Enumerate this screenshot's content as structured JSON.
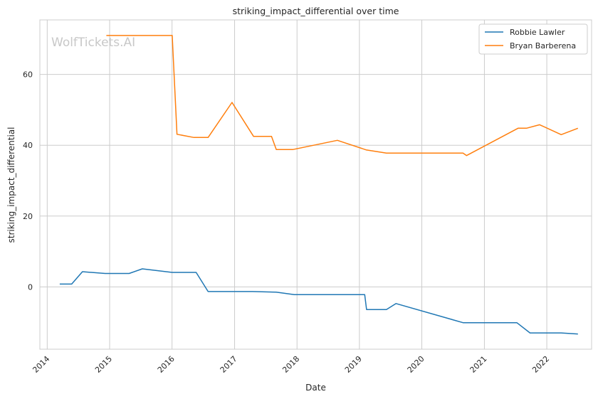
{
  "chart_data": {
    "type": "line",
    "title": "striking_impact_differential over time",
    "xlabel": "Date",
    "ylabel": "striking_impact_differential",
    "watermark": "WolfTickets.AI",
    "xlim": [
      "2013-11-19",
      "2022-09-20"
    ],
    "ylim": [
      -17.6,
      75.4
    ],
    "x_ticks": [
      "2014",
      "2015",
      "2016",
      "2017",
      "2018",
      "2019",
      "2020",
      "2021",
      "2022"
    ],
    "y_ticks": [
      0,
      20,
      40,
      60
    ],
    "grid": true,
    "legend_position": "top-right",
    "series": [
      {
        "name": "Robbie Lawler",
        "color": "#1f77b4",
        "x": [
          "2014-03-15",
          "2014-05-24",
          "2014-07-26",
          "2014-12-06",
          "2015-04-25",
          "2015-07-11",
          "2016-01-02",
          "2016-05-21",
          "2016-07-30",
          "2017-04-15",
          "2017-09-01",
          "2017-12-16",
          "2018-08-04",
          "2019-02-01",
          "2019-02-12",
          "2019-06-08",
          "2019-08-03",
          "2020-08-29",
          "2020-09-12",
          "2021-07-10",
          "2021-09-25",
          "2022-03-26",
          "2022-07-02"
        ],
        "values": [
          0.8,
          0.8,
          4.3,
          3.8,
          3.8,
          5.1,
          4.1,
          4.1,
          -1.3,
          -1.3,
          -1.5,
          -2.2,
          -2.2,
          -2.2,
          -6.4,
          -6.4,
          -4.7,
          -10.1,
          -10.1,
          -10.1,
          -13.0,
          -13.0,
          -13.3
        ]
      },
      {
        "name": "Bryan Barberena",
        "color": "#ff7f0e",
        "x": [
          "2014-12-13",
          "2015-04-04",
          "2016-01-02",
          "2016-01-30",
          "2016-05-08",
          "2016-07-30",
          "2016-12-17",
          "2017-04-22",
          "2017-08-05",
          "2017-09-02",
          "2017-12-09",
          "2018-08-25",
          "2019-02-09",
          "2019-06-08",
          "2020-08-29",
          "2020-09-19",
          "2021-07-17",
          "2021-09-04",
          "2021-11-20",
          "2022-03-26",
          "2022-07-02"
        ],
        "values": [
          71.0,
          71.0,
          71.0,
          43.1,
          42.2,
          42.2,
          52.1,
          42.5,
          42.5,
          38.8,
          38.8,
          41.4,
          38.7,
          37.8,
          37.8,
          37.1,
          44.8,
          44.8,
          45.8,
          43.0,
          44.8
        ]
      }
    ]
  }
}
